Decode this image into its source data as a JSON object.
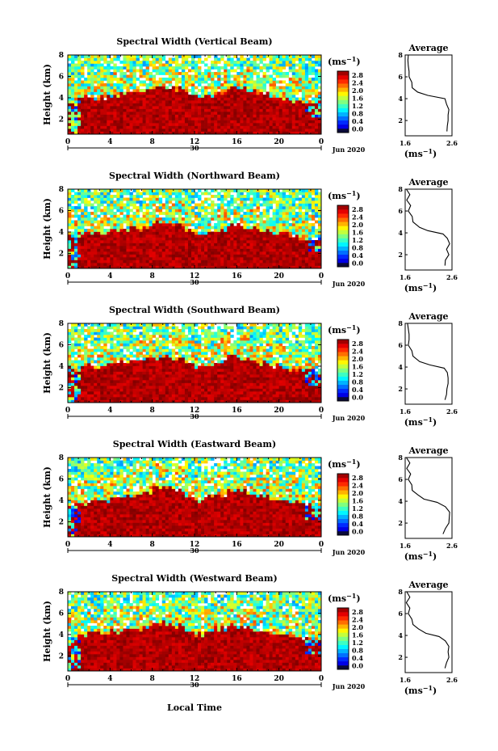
{
  "figure": {
    "xlabel": "Local Time",
    "date_label": "Jun 2020",
    "day_label": "30",
    "average_title": "Average",
    "colorbar_units": "(ms-1)",
    "unit_base": "(ms",
    "unit_exp": "−1",
    "unit_close": ")"
  },
  "chart_data": [
    {
      "type": "heatmap",
      "title": "Spectral Width (Vertical Beam)",
      "ylabel": "Height (km)",
      "x_ticks": [
        "0",
        "4",
        "8",
        "12",
        "16",
        "20",
        "0"
      ],
      "y_ticks": [
        "2",
        "4",
        "6",
        "8"
      ],
      "ylim": [
        0.6,
        8.0
      ],
      "xlim": [
        0,
        24
      ],
      "colorbar": {
        "ticks": [
          "0.0",
          "0.4",
          "0.8",
          "1.2",
          "1.6",
          "2.0",
          "2.4",
          "2.8"
        ],
        "range": [
          0.0,
          3.0
        ]
      },
      "boundary_layer_top_km": [
        3.8,
        4.0,
        4.0,
        4.1,
        4.2,
        4.4,
        4.6,
        4.8,
        5.0,
        5.0,
        4.8,
        4.4,
        4.0,
        4.2,
        4.6,
        5.0,
        4.8,
        4.6,
        4.4,
        4.2,
        4.0,
        3.8,
        3.6,
        3.6
      ],
      "average_profile": {
        "x_ticks": [
          "1.6",
          "2.6"
        ],
        "xlim": [
          1.5,
          2.7
        ],
        "ylim": [
          0.6,
          8.0
        ],
        "y_ticks": [
          "2",
          "4",
          "6",
          "8"
        ],
        "points": [
          [
            2.55,
            1.0
          ],
          [
            2.6,
            1.5
          ],
          [
            2.58,
            2.0
          ],
          [
            2.62,
            2.5
          ],
          [
            2.6,
            3.0
          ],
          [
            2.58,
            3.5
          ],
          [
            2.5,
            4.0
          ],
          [
            2.1,
            4.3
          ],
          [
            1.8,
            4.6
          ],
          [
            1.7,
            5.0
          ],
          [
            1.65,
            5.5
          ],
          [
            1.62,
            6.0
          ],
          [
            1.58,
            6.5
          ],
          [
            1.6,
            7.0
          ],
          [
            1.55,
            7.5
          ],
          [
            1.6,
            8.0
          ]
        ]
      }
    },
    {
      "type": "heatmap",
      "title": "Spectral Width (Northward Beam)",
      "ylabel": "Height (km)",
      "x_ticks": [
        "0",
        "4",
        "8",
        "12",
        "16",
        "20",
        "0"
      ],
      "y_ticks": [
        "2",
        "4",
        "6",
        "8"
      ],
      "ylim": [
        0.6,
        8.0
      ],
      "xlim": [
        0,
        24
      ],
      "colorbar": {
        "ticks": [
          "0.0",
          "0.4",
          "0.8",
          "1.2",
          "1.6",
          "2.0",
          "2.4",
          "2.8"
        ],
        "range": [
          0.0,
          3.0
        ]
      },
      "boundary_layer_top_km": [
        3.6,
        3.8,
        4.0,
        4.0,
        4.1,
        4.2,
        4.4,
        4.6,
        4.8,
        4.8,
        4.6,
        4.2,
        3.8,
        3.8,
        4.2,
        4.6,
        4.6,
        4.4,
        4.2,
        4.0,
        3.8,
        3.6,
        3.4,
        3.4
      ],
      "average_profile": {
        "x_ticks": [
          "1.6",
          "2.6"
        ],
        "xlim": [
          1.5,
          2.7
        ],
        "ylim": [
          0.6,
          8.0
        ],
        "y_ticks": [
          "2",
          "4",
          "6",
          "8"
        ],
        "points": [
          [
            2.5,
            1.0
          ],
          [
            2.55,
            1.5
          ],
          [
            2.6,
            2.0
          ],
          [
            2.58,
            2.5
          ],
          [
            2.62,
            3.0
          ],
          [
            2.6,
            3.5
          ],
          [
            2.45,
            3.9
          ],
          [
            2.1,
            4.2
          ],
          [
            1.85,
            4.5
          ],
          [
            1.72,
            5.0
          ],
          [
            1.66,
            5.5
          ],
          [
            1.6,
            6.0
          ],
          [
            1.62,
            6.5
          ],
          [
            1.56,
            7.0
          ],
          [
            1.6,
            7.5
          ],
          [
            1.55,
            8.0
          ]
        ]
      }
    },
    {
      "type": "heatmap",
      "title": "Spectral Width (Southward Beam)",
      "ylabel": "Height (km)",
      "x_ticks": [
        "0",
        "4",
        "8",
        "12",
        "16",
        "20",
        "0"
      ],
      "y_ticks": [
        "2",
        "4",
        "6",
        "8"
      ],
      "ylim": [
        0.6,
        8.0
      ],
      "xlim": [
        0,
        24
      ],
      "colorbar": {
        "ticks": [
          "0.0",
          "0.4",
          "0.8",
          "1.2",
          "1.6",
          "2.0",
          "2.4",
          "2.8"
        ],
        "range": [
          0.0,
          3.0
        ]
      },
      "boundary_layer_top_km": [
        3.8,
        3.8,
        4.0,
        4.1,
        4.2,
        4.3,
        4.5,
        4.7,
        4.9,
        4.9,
        4.7,
        4.3,
        4.0,
        4.1,
        4.4,
        4.8,
        4.7,
        4.5,
        4.3,
        4.1,
        3.9,
        3.7,
        3.6,
        3.6
      ],
      "average_profile": {
        "x_ticks": [
          "1.6",
          "2.6"
        ],
        "xlim": [
          1.5,
          2.7
        ],
        "ylim": [
          0.6,
          8.0
        ],
        "y_ticks": [
          "2",
          "4",
          "6",
          "8"
        ],
        "points": [
          [
            2.5,
            1.0
          ],
          [
            2.58,
            1.5
          ],
          [
            2.55,
            2.0
          ],
          [
            2.62,
            2.5
          ],
          [
            2.58,
            3.0
          ],
          [
            2.6,
            3.5
          ],
          [
            2.48,
            3.9
          ],
          [
            2.15,
            4.2
          ],
          [
            1.85,
            4.5
          ],
          [
            1.72,
            5.0
          ],
          [
            1.65,
            5.5
          ],
          [
            1.6,
            6.0
          ],
          [
            1.58,
            6.5
          ],
          [
            1.62,
            7.0
          ],
          [
            1.56,
            7.5
          ],
          [
            1.58,
            8.0
          ]
        ]
      }
    },
    {
      "type": "heatmap",
      "title": "Spectral Width (Eastward Beam)",
      "ylabel": "Height (km)",
      "x_ticks": [
        "0",
        "4",
        "8",
        "12",
        "16",
        "20",
        "0"
      ],
      "y_ticks": [
        "2",
        "4",
        "6",
        "8"
      ],
      "ylim": [
        0.6,
        8.0
      ],
      "xlim": [
        0,
        24
      ],
      "colorbar": {
        "ticks": [
          "0.0",
          "0.4",
          "0.8",
          "1.2",
          "1.6",
          "2.0",
          "2.4",
          "2.8"
        ],
        "range": [
          0.0,
          3.0
        ]
      },
      "boundary_layer_top_km": [
        3.6,
        3.8,
        3.9,
        4.0,
        4.2,
        4.4,
        4.6,
        4.8,
        5.2,
        5.2,
        4.9,
        4.4,
        4.0,
        4.2,
        4.6,
        5.0,
        4.9,
        4.6,
        4.4,
        4.2,
        4.0,
        3.8,
        3.6,
        3.5
      ],
      "average_profile": {
        "x_ticks": [
          "1.6",
          "2.6"
        ],
        "xlim": [
          1.5,
          2.7
        ],
        "ylim": [
          0.6,
          8.0
        ],
        "y_ticks": [
          "2",
          "4",
          "6",
          "8"
        ],
        "points": [
          [
            2.45,
            1.0
          ],
          [
            2.55,
            1.5
          ],
          [
            2.6,
            2.0
          ],
          [
            2.65,
            2.5
          ],
          [
            2.62,
            3.0
          ],
          [
            2.55,
            3.5
          ],
          [
            2.3,
            3.9
          ],
          [
            2.0,
            4.2
          ],
          [
            1.8,
            4.6
          ],
          [
            1.7,
            5.0
          ],
          [
            1.65,
            5.5
          ],
          [
            1.6,
            6.0
          ],
          [
            1.62,
            6.5
          ],
          [
            1.56,
            7.0
          ],
          [
            1.6,
            7.5
          ],
          [
            1.55,
            8.0
          ]
        ]
      }
    },
    {
      "type": "heatmap",
      "title": "Spectral Width (Westward Beam)",
      "ylabel": "Height (km)",
      "x_ticks": [
        "0",
        "4",
        "8",
        "12",
        "16",
        "20",
        "0"
      ],
      "y_ticks": [
        "2",
        "4",
        "6",
        "8"
      ],
      "ylim": [
        0.6,
        8.0
      ],
      "xlim": [
        0,
        24
      ],
      "colorbar": {
        "ticks": [
          "0.0",
          "0.4",
          "0.8",
          "1.2",
          "1.6",
          "2.0",
          "2.4",
          "2.8"
        ],
        "range": [
          0.0,
          3.0
        ]
      },
      "boundary_layer_top_km": [
        3.8,
        4.0,
        4.0,
        4.1,
        4.2,
        4.4,
        4.6,
        4.8,
        5.0,
        5.0,
        4.8,
        4.4,
        4.0,
        4.2,
        4.6,
        5.0,
        4.8,
        4.6,
        4.4,
        4.2,
        4.0,
        3.8,
        3.6,
        3.6
      ],
      "average_profile": {
        "x_ticks": [
          "1.6",
          "2.6"
        ],
        "xlim": [
          1.5,
          2.7
        ],
        "ylim": [
          0.6,
          8.0
        ],
        "y_ticks": [
          "2",
          "4",
          "6",
          "8"
        ],
        "points": [
          [
            2.5,
            1.0
          ],
          [
            2.58,
            1.5
          ],
          [
            2.6,
            2.0
          ],
          [
            2.62,
            2.5
          ],
          [
            2.6,
            3.0
          ],
          [
            2.55,
            3.5
          ],
          [
            2.35,
            3.9
          ],
          [
            2.05,
            4.2
          ],
          [
            1.82,
            4.6
          ],
          [
            1.72,
            5.0
          ],
          [
            1.65,
            5.5
          ],
          [
            1.6,
            6.0
          ],
          [
            1.6,
            6.5
          ],
          [
            1.55,
            7.0
          ],
          [
            1.6,
            7.5
          ],
          [
            1.56,
            8.0
          ]
        ]
      }
    }
  ]
}
